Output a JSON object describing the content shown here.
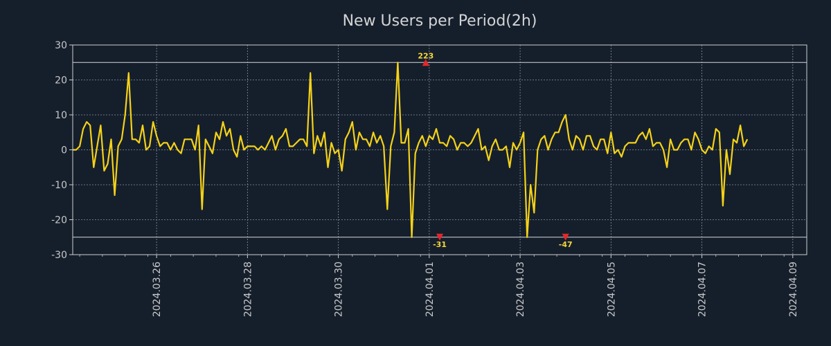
{
  "chart_data": {
    "type": "line",
    "title": "New Users per Period(2h)",
    "xlabel": "",
    "ylabel": "",
    "ylim": [
      -30,
      30
    ],
    "xlim": [
      0,
      210
    ],
    "y_ticks": [
      "30",
      "20",
      "10",
      "0",
      "-10",
      "-20",
      "-30"
    ],
    "x_ticks": [
      {
        "label": "2024.03.26",
        "x": 24
      },
      {
        "label": "2024.03.28",
        "x": 50
      },
      {
        "label": "2024.03.30",
        "x": 76
      },
      {
        "label": "2024.04.01",
        "x": 102
      },
      {
        "label": "2024.04.03",
        "x": 128
      },
      {
        "label": "2024.04.05",
        "x": 154
      },
      {
        "label": "2024.04.07",
        "x": 180
      },
      {
        "label": "2024.04.09",
        "x": 206
      }
    ],
    "clip_lines": [
      25,
      -25
    ],
    "grid": true,
    "colors": {
      "line": "#f5d218",
      "marker": "#e8252a",
      "annotation": "#f5d63a",
      "grid": "#8a9099",
      "axes": "#cfcfcf",
      "background": "#151f2c"
    },
    "annotations": [
      {
        "label": "223",
        "x": 101,
        "y": 25,
        "direction": "up"
      },
      {
        "label": "-31",
        "x": 105,
        "y": -25,
        "direction": "down"
      },
      {
        "label": "-47",
        "x": 141,
        "y": -25,
        "direction": "down"
      }
    ],
    "series": [
      {
        "name": "New Users",
        "values": [
          0,
          0,
          1,
          6,
          8,
          7,
          -5,
          1,
          7,
          -6,
          -4,
          3,
          -13,
          1,
          3,
          10,
          22,
          3,
          3,
          2,
          7,
          0,
          1,
          8,
          4,
          1,
          2,
          2,
          0,
          2,
          0,
          -1,
          3,
          3,
          3,
          0,
          7,
          -17,
          3,
          1,
          -1,
          5,
          3,
          8,
          4,
          6,
          0,
          -2,
          4,
          0,
          1,
          1,
          1,
          0,
          1,
          0,
          2,
          4,
          0,
          3,
          4,
          6,
          1,
          1,
          2,
          3,
          3,
          1,
          22,
          -1,
          4,
          1,
          5,
          -5,
          2,
          -1,
          0,
          -6,
          3,
          5,
          8,
          0,
          5,
          3,
          3,
          1,
          5,
          2,
          4,
          1,
          -17,
          1,
          5,
          25,
          2,
          2,
          6,
          -25,
          -1,
          2,
          4,
          1,
          4,
          3,
          6,
          2,
          2,
          1,
          4,
          3,
          0,
          2,
          2,
          1,
          2,
          4,
          6,
          0,
          1,
          -3,
          1,
          3,
          0,
          0,
          1,
          -5,
          2,
          0,
          2,
          5,
          -25,
          -10,
          -18,
          0,
          3,
          4,
          0,
          3,
          5,
          5,
          8,
          10,
          3,
          0,
          4,
          3,
          0,
          4,
          4,
          1,
          0,
          3,
          3,
          -1,
          5,
          -1,
          0,
          -2,
          1,
          2,
          2,
          2,
          4,
          5,
          3,
          6,
          1,
          2,
          2,
          0,
          -5,
          3,
          0,
          0,
          2,
          3,
          3,
          0,
          5,
          3,
          0,
          -1,
          1,
          0,
          6,
          5,
          -16,
          0,
          -7,
          3,
          2,
          7,
          1,
          3
        ]
      }
    ]
  }
}
